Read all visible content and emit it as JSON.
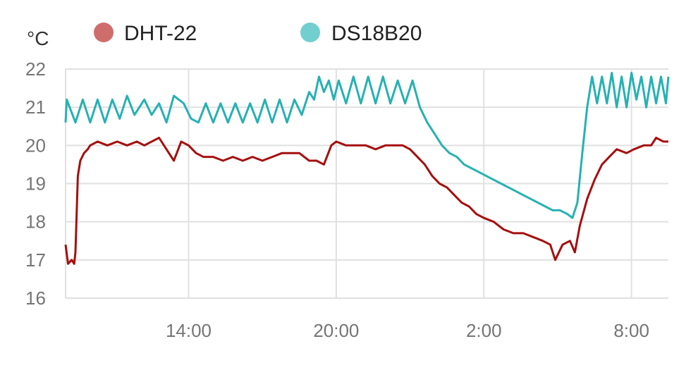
{
  "chart_data": {
    "type": "line",
    "unit_label": "°C",
    "ylim": [
      16,
      22
    ],
    "yticks": [
      16,
      17,
      18,
      19,
      20,
      21,
      22
    ],
    "xlim_hours": [
      9,
      33.5
    ],
    "xticks": [
      {
        "hour": 14,
        "label": "14:00"
      },
      {
        "hour": 20,
        "label": "20:00"
      },
      {
        "hour": 26,
        "label": "2:00"
      },
      {
        "hour": 32,
        "label": "8:00"
      }
    ],
    "grid": true,
    "legend_position": "top",
    "series": [
      {
        "name": "DHT-22",
        "color": "#a50f0f",
        "legend_color": "#cf6d6d",
        "points": [
          [
            9.0,
            17.4
          ],
          [
            9.1,
            16.9
          ],
          [
            9.25,
            17.0
          ],
          [
            9.35,
            16.9
          ],
          [
            9.4,
            17.2
          ],
          [
            9.5,
            19.2
          ],
          [
            9.6,
            19.6
          ],
          [
            9.75,
            19.8
          ],
          [
            9.9,
            19.9
          ],
          [
            10.0,
            20.0
          ],
          [
            10.3,
            20.1
          ],
          [
            10.7,
            20.0
          ],
          [
            11.1,
            20.1
          ],
          [
            11.5,
            20.0
          ],
          [
            11.9,
            20.1
          ],
          [
            12.2,
            20.0
          ],
          [
            12.5,
            20.1
          ],
          [
            12.8,
            20.2
          ],
          [
            13.1,
            19.9
          ],
          [
            13.4,
            19.6
          ],
          [
            13.7,
            20.1
          ],
          [
            14.0,
            20.0
          ],
          [
            14.3,
            19.8
          ],
          [
            14.6,
            19.7
          ],
          [
            15.0,
            19.7
          ],
          [
            15.4,
            19.6
          ],
          [
            15.8,
            19.7
          ],
          [
            16.2,
            19.6
          ],
          [
            16.6,
            19.7
          ],
          [
            17.0,
            19.6
          ],
          [
            17.4,
            19.7
          ],
          [
            17.8,
            19.8
          ],
          [
            18.2,
            19.8
          ],
          [
            18.5,
            19.8
          ],
          [
            18.9,
            19.6
          ],
          [
            19.2,
            19.6
          ],
          [
            19.5,
            19.5
          ],
          [
            19.8,
            20.0
          ],
          [
            20.0,
            20.1
          ],
          [
            20.4,
            20.0
          ],
          [
            20.8,
            20.0
          ],
          [
            21.2,
            20.0
          ],
          [
            21.6,
            19.9
          ],
          [
            22.0,
            20.0
          ],
          [
            22.4,
            20.0
          ],
          [
            22.7,
            20.0
          ],
          [
            23.0,
            19.9
          ],
          [
            23.3,
            19.7
          ],
          [
            23.6,
            19.5
          ],
          [
            23.9,
            19.2
          ],
          [
            24.2,
            19.0
          ],
          [
            24.5,
            18.9
          ],
          [
            24.8,
            18.7
          ],
          [
            25.1,
            18.5
          ],
          [
            25.4,
            18.4
          ],
          [
            25.7,
            18.2
          ],
          [
            26.0,
            18.1
          ],
          [
            26.4,
            18.0
          ],
          [
            26.8,
            17.8
          ],
          [
            27.2,
            17.7
          ],
          [
            27.6,
            17.7
          ],
          [
            28.0,
            17.6
          ],
          [
            28.4,
            17.5
          ],
          [
            28.7,
            17.4
          ],
          [
            28.9,
            17.0
          ],
          [
            29.2,
            17.4
          ],
          [
            29.5,
            17.5
          ],
          [
            29.7,
            17.2
          ],
          [
            29.9,
            17.9
          ],
          [
            30.2,
            18.6
          ],
          [
            30.5,
            19.1
          ],
          [
            30.8,
            19.5
          ],
          [
            31.1,
            19.7
          ],
          [
            31.4,
            19.9
          ],
          [
            31.8,
            19.8
          ],
          [
            32.1,
            19.9
          ],
          [
            32.5,
            20.0
          ],
          [
            32.8,
            20.0
          ],
          [
            33.0,
            20.2
          ],
          [
            33.3,
            20.1
          ],
          [
            33.5,
            20.1
          ]
        ]
      },
      {
        "name": "DS18B20",
        "color": "#27b1b3",
        "legend_color": "#71cfcf",
        "points": [
          [
            9.0,
            20.6
          ],
          [
            9.05,
            21.2
          ],
          [
            9.4,
            20.6
          ],
          [
            9.7,
            21.2
          ],
          [
            10.0,
            20.6
          ],
          [
            10.3,
            21.2
          ],
          [
            10.6,
            20.6
          ],
          [
            10.9,
            21.2
          ],
          [
            11.2,
            20.7
          ],
          [
            11.5,
            21.3
          ],
          [
            11.8,
            20.8
          ],
          [
            12.2,
            21.2
          ],
          [
            12.5,
            20.8
          ],
          [
            12.8,
            21.1
          ],
          [
            13.1,
            20.6
          ],
          [
            13.4,
            21.3
          ],
          [
            13.8,
            21.1
          ],
          [
            14.1,
            20.7
          ],
          [
            14.4,
            20.6
          ],
          [
            14.7,
            21.1
          ],
          [
            15.0,
            20.6
          ],
          [
            15.3,
            21.1
          ],
          [
            15.6,
            20.6
          ],
          [
            15.9,
            21.1
          ],
          [
            16.2,
            20.6
          ],
          [
            16.5,
            21.1
          ],
          [
            16.8,
            20.6
          ],
          [
            17.1,
            21.2
          ],
          [
            17.4,
            20.6
          ],
          [
            17.7,
            21.2
          ],
          [
            18.0,
            20.6
          ],
          [
            18.3,
            21.2
          ],
          [
            18.6,
            20.8
          ],
          [
            18.9,
            21.4
          ],
          [
            19.1,
            21.2
          ],
          [
            19.3,
            21.8
          ],
          [
            19.5,
            21.4
          ],
          [
            19.7,
            21.7
          ],
          [
            19.9,
            21.2
          ],
          [
            20.1,
            21.7
          ],
          [
            20.4,
            21.1
          ],
          [
            20.7,
            21.8
          ],
          [
            21.0,
            21.1
          ],
          [
            21.3,
            21.8
          ],
          [
            21.6,
            21.1
          ],
          [
            21.9,
            21.8
          ],
          [
            22.2,
            21.1
          ],
          [
            22.5,
            21.7
          ],
          [
            22.8,
            21.1
          ],
          [
            23.1,
            21.7
          ],
          [
            23.4,
            21.0
          ],
          [
            23.7,
            20.6
          ],
          [
            24.0,
            20.3
          ],
          [
            24.3,
            20.0
          ],
          [
            24.6,
            19.8
          ],
          [
            24.9,
            19.7
          ],
          [
            25.2,
            19.5
          ],
          [
            25.5,
            19.4
          ],
          [
            25.8,
            19.3
          ],
          [
            26.1,
            19.2
          ],
          [
            26.4,
            19.1
          ],
          [
            26.7,
            19.0
          ],
          [
            27.0,
            18.9
          ],
          [
            27.3,
            18.8
          ],
          [
            27.6,
            18.7
          ],
          [
            27.9,
            18.6
          ],
          [
            28.2,
            18.5
          ],
          [
            28.5,
            18.4
          ],
          [
            28.8,
            18.3
          ],
          [
            29.1,
            18.3
          ],
          [
            29.4,
            18.2
          ],
          [
            29.6,
            18.1
          ],
          [
            29.8,
            18.5
          ],
          [
            30.0,
            19.8
          ],
          [
            30.2,
            21.0
          ],
          [
            30.4,
            21.8
          ],
          [
            30.6,
            21.1
          ],
          [
            30.8,
            21.8
          ],
          [
            31.0,
            21.1
          ],
          [
            31.2,
            21.9
          ],
          [
            31.4,
            21.0
          ],
          [
            31.6,
            21.8
          ],
          [
            31.8,
            21.0
          ],
          [
            32.0,
            21.9
          ],
          [
            32.2,
            21.2
          ],
          [
            32.4,
            21.8
          ],
          [
            32.6,
            21.0
          ],
          [
            32.8,
            21.8
          ],
          [
            33.0,
            21.1
          ],
          [
            33.2,
            21.8
          ],
          [
            33.4,
            21.1
          ],
          [
            33.5,
            21.8
          ]
        ]
      }
    ]
  }
}
